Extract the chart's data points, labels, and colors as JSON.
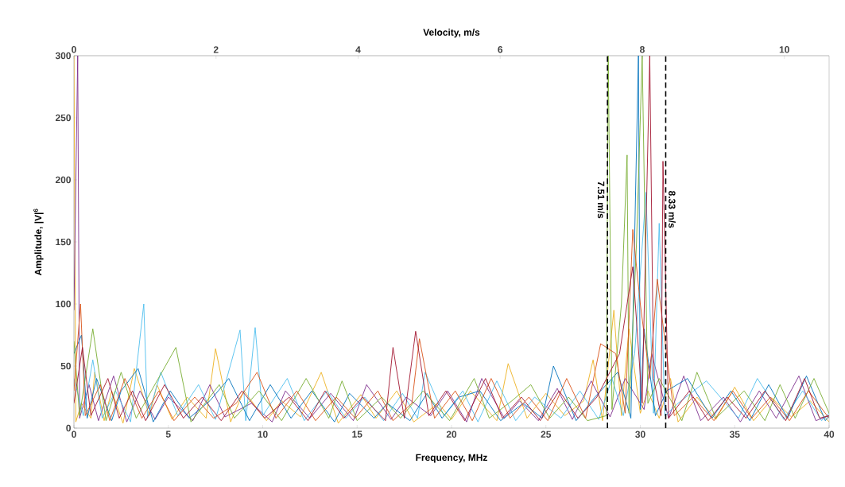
{
  "chart_data": {
    "type": "line",
    "xlabel": "Frequency, MHz",
    "x2label": "Velocity, m/s",
    "ylabel": "Amplitude, |V|$^{6}$",
    "xlim": [
      0,
      40
    ],
    "xticks": [
      0,
      5,
      10,
      15,
      20,
      25,
      30,
      35,
      40
    ],
    "x2lim": [
      0,
      10.63
    ],
    "x2ticks": [
      0,
      2,
      4,
      6,
      8,
      10
    ],
    "ylim": [
      0,
      300
    ],
    "yticks": [
      0,
      50,
      100,
      150,
      200,
      250,
      300
    ],
    "ref_lines": [
      {
        "axis": "x2",
        "value": 7.51,
        "label": "7.51 m/s",
        "color": "#000000",
        "line_style": "dashed"
      },
      {
        "axis": "x2",
        "value": 8.33,
        "label": "8.33 m/s",
        "color": "#000000",
        "line_style": "dashed"
      }
    ],
    "series": [
      {
        "color": "#edb120",
        "x": [
          0,
          0.1,
          0.4,
          0.9,
          1.1,
          1.6,
          2.0,
          2.6,
          3.2,
          4.0,
          4.4,
          5.2,
          6.0,
          7.0,
          7.5,
          8.3,
          9.0,
          10.2,
          11.0,
          12.0,
          13.1,
          14.0,
          15.2,
          16.0,
          17.1,
          18.0,
          19.3,
          20.0,
          21.0,
          22.4,
          23.0,
          24.0,
          25.0,
          26.0,
          27.0,
          27.5,
          28.0,
          28.6,
          29.0,
          29.4,
          30.0,
          30.4,
          31.0,
          31.6,
          32.0,
          33.0,
          34.0,
          35.0,
          36.0,
          37.0,
          38.0,
          39.0,
          40
        ],
        "values": [
          300,
          5,
          20,
          8,
          45,
          6,
          30,
          4,
          48,
          10,
          35,
          7,
          25,
          8,
          64,
          5,
          30,
          6,
          22,
          9,
          45,
          4,
          27,
          8,
          30,
          5,
          20,
          7,
          30,
          6,
          52,
          8,
          28,
          10,
          22,
          55,
          6,
          95,
          10,
          80,
          12,
          30,
          8,
          40,
          5,
          25,
          7,
          33,
          6,
          24,
          9,
          22,
          5
        ]
      },
      {
        "color": "#7e2f8e",
        "x": [
          0,
          0.2,
          0.3,
          0.8,
          1.3,
          2.1,
          2.8,
          3.5,
          4.3,
          5.0,
          6.3,
          7.2,
          8.0,
          9.4,
          10.5,
          11.2,
          12.5,
          13.6,
          14.8,
          15.5,
          16.8,
          17.6,
          18.9,
          19.8,
          20.8,
          21.6,
          22.8,
          23.6,
          24.6,
          25.6,
          26.4,
          27.4,
          28.4,
          29.2,
          30.2,
          30.6,
          31.5,
          32.3,
          33.2,
          34.4,
          35.3,
          36.3,
          37.2,
          38.4,
          39.3,
          40
        ],
        "values": [
          95,
          300,
          8,
          35,
          6,
          42,
          5,
          30,
          7,
          25,
          6,
          35,
          9,
          20,
          5,
          30,
          8,
          28,
          6,
          35,
          7,
          25,
          10,
          30,
          5,
          40,
          8,
          22,
          6,
          32,
          7,
          38,
          9,
          40,
          15,
          60,
          8,
          42,
          6,
          25,
          5,
          30,
          8,
          42,
          6,
          10
        ]
      },
      {
        "color": "#4dbeee",
        "x": [
          0,
          0.5,
          1.0,
          1.5,
          2.2,
          3.0,
          3.7,
          3.9,
          4.6,
          5.5,
          6.6,
          7.5,
          8.8,
          9.1,
          9.6,
          10.0,
          11.3,
          12.2,
          13.4,
          14.4,
          15.4,
          16.4,
          17.4,
          18.2,
          18.6,
          19.6,
          20.6,
          21.4,
          22.4,
          23.4,
          24.4,
          25.8,
          26.8,
          27.8,
          28.5,
          29.1,
          29.7,
          30.3,
          30.7,
          31.0,
          31.3,
          32.0,
          33.5,
          35.2,
          36.2,
          37.6,
          38.6,
          39.6,
          40
        ],
        "values": [
          40,
          10,
          55,
          8,
          30,
          5,
          100,
          8,
          45,
          10,
          35,
          7,
          79,
          6,
          81,
          10,
          40,
          6,
          30,
          8,
          25,
          6,
          28,
          8,
          45,
          10,
          30,
          5,
          38,
          6,
          25,
          8,
          30,
          7,
          40,
          10,
          60,
          190,
          12,
          165,
          10,
          20,
          38,
          8,
          40,
          7,
          30,
          6,
          12
        ]
      },
      {
        "color": "#0072bd",
        "x": [
          0,
          0.4,
          0.7,
          1.2,
          2.0,
          2.5,
          3.4,
          4.2,
          5.1,
          6.1,
          7.2,
          8.2,
          9.3,
          10.4,
          11.5,
          12.6,
          13.8,
          14.6,
          15.9,
          16.6,
          17.8,
          18.7,
          19.5,
          20.4,
          21.5,
          22.6,
          23.8,
          24.8,
          25.4,
          26.6,
          27.6,
          28.8,
          29.5,
          29.9,
          30.0,
          30.2,
          30.8,
          31.4,
          32.5,
          33.8,
          34.8,
          35.8,
          36.8,
          37.8,
          38.8,
          39.8,
          40
        ],
        "values": [
          60,
          75,
          8,
          40,
          6,
          30,
          48,
          5,
          30,
          8,
          22,
          40,
          6,
          35,
          8,
          30,
          5,
          28,
          8,
          20,
          6,
          28,
          8,
          25,
          30,
          6,
          20,
          8,
          50,
          6,
          25,
          45,
          8,
          300,
          15,
          80,
          10,
          30,
          40,
          8,
          30,
          6,
          35,
          8,
          42,
          6,
          10
        ]
      },
      {
        "color": "#77ac30",
        "x": [
          0,
          0.3,
          1.0,
          1.7,
          2.5,
          3.3,
          4.1,
          5.4,
          6.2,
          7.7,
          8.5,
          9.8,
          11.0,
          12.3,
          13.5,
          14.2,
          15.0,
          16.3,
          17.3,
          18.5,
          19.9,
          21.2,
          22.0,
          23.2,
          24.2,
          25.2,
          26.2,
          27.2,
          28.2,
          28.3,
          28.5,
          29.0,
          29.3,
          29.4,
          29.8,
          30.1,
          30.4,
          31.0,
          32.2,
          33.0,
          34.0,
          35.5,
          36.6,
          37.4,
          38.2,
          39.2,
          40
        ],
        "values": [
          70,
          10,
          80,
          6,
          45,
          8,
          30,
          65,
          5,
          35,
          8,
          30,
          6,
          40,
          8,
          38,
          6,
          25,
          8,
          30,
          6,
          40,
          8,
          22,
          35,
          8,
          25,
          6,
          10,
          300,
          15,
          100,
          220,
          12,
          150,
          300,
          20,
          40,
          6,
          45,
          8,
          30,
          6,
          35,
          8,
          40,
          12
        ]
      },
      {
        "color": "#d95319",
        "x": [
          0,
          0.35,
          0.6,
          1.4,
          1.9,
          2.7,
          3.6,
          4.5,
          5.3,
          6.4,
          7.4,
          8.6,
          9.7,
          10.7,
          11.8,
          12.8,
          13.9,
          14.9,
          16.1,
          16.9,
          17.9,
          18.3,
          19.1,
          20.2,
          21.1,
          22.1,
          23.1,
          24.1,
          25.1,
          26.1,
          27.1,
          27.9,
          28.7,
          29.2,
          29.6,
          30.0,
          30.5,
          30.9,
          31.8,
          32.8,
          33.9,
          34.9,
          35.9,
          36.9,
          37.9,
          38.9,
          40
        ],
        "values": [
          30,
          100,
          10,
          35,
          6,
          40,
          8,
          30,
          6,
          25,
          8,
          20,
          45,
          8,
          30,
          6,
          25,
          8,
          30,
          6,
          20,
          72,
          8,
          30,
          6,
          40,
          8,
          25,
          6,
          40,
          8,
          68,
          60,
          12,
          160,
          100,
          40,
          120,
          10,
          25,
          6,
          30,
          8,
          25,
          6,
          30,
          8
        ]
      },
      {
        "color": "#a2142f",
        "x": [
          0,
          0.45,
          0.9,
          1.8,
          2.4,
          3.1,
          3.8,
          4.8,
          5.8,
          6.8,
          7.8,
          8.9,
          10.1,
          11.4,
          12.4,
          13.3,
          14.3,
          15.3,
          16.5,
          16.9,
          17.5,
          18.1,
          18.8,
          19.7,
          20.7,
          21.8,
          22.7,
          23.7,
          24.7,
          25.7,
          26.7,
          27.7,
          28.9,
          29.6,
          30.1,
          30.5,
          30.7,
          31.1,
          31.2,
          31.5,
          32.6,
          33.6,
          34.6,
          35.6,
          36.6,
          37.7,
          38.7,
          39.5,
          40
        ],
        "values": [
          20,
          65,
          10,
          40,
          8,
          30,
          6,
          35,
          8,
          25,
          6,
          30,
          8,
          25,
          6,
          30,
          8,
          25,
          6,
          65,
          8,
          78,
          10,
          30,
          6,
          40,
          8,
          25,
          6,
          30,
          8,
          25,
          60,
          130,
          20,
          300,
          40,
          10,
          215,
          8,
          30,
          6,
          25,
          8,
          30,
          6,
          40,
          8,
          10
        ]
      }
    ]
  }
}
